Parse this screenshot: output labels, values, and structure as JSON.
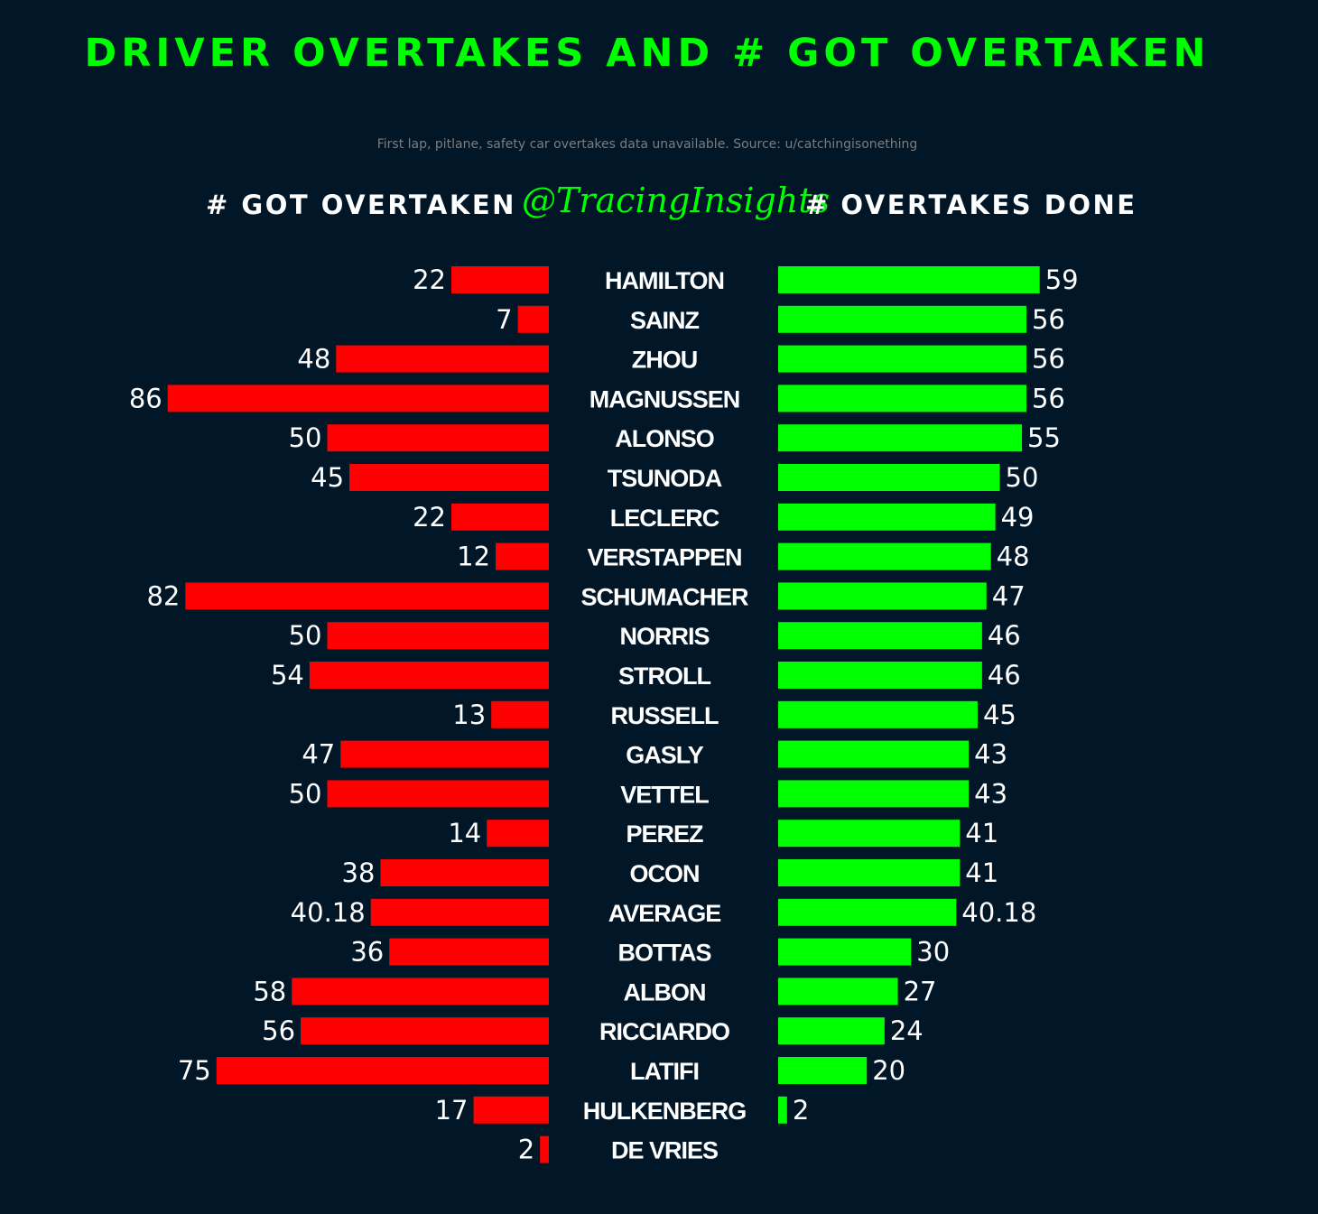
{
  "title": "DRIVER OVERTAKES AND # GOT OVERTAKEN",
  "subtitle": "First lap, pitlane, safety car overtakes data unavailable. Source: u/catchingisonething",
  "left_header": "# GOT OVERTAKEN",
  "right_header": "# OVERTAKES DONE",
  "watermark": "@TracingInsights",
  "colors": {
    "background": "#011627",
    "got_overtaken": "#ff0000",
    "overtakes_done": "#00ff00",
    "title": "#00ff00",
    "text": "#ffffff"
  },
  "chart_data": {
    "type": "bar",
    "orientation": "horizontal-diverging",
    "categories": [
      "HAMILTON",
      "SAINZ",
      "ZHOU",
      "MAGNUSSEN",
      "ALONSO",
      "TSUNODA",
      "LECLERC",
      "VERSTAPPEN",
      "SCHUMACHER",
      "NORRIS",
      "STROLL",
      "RUSSELL",
      "GASLY",
      "VETTEL",
      "PEREZ",
      "OCON",
      "AVERAGE",
      "BOTTAS",
      "ALBON",
      "RICCIARDO",
      "LATIFI",
      "HULKENBERG",
      "DE VRIES"
    ],
    "series": [
      {
        "name": "# GOT OVERTAKEN",
        "side": "left",
        "values": [
          22,
          7,
          48,
          86,
          50,
          45,
          22,
          12,
          82,
          50,
          54,
          13,
          47,
          50,
          14,
          38,
          40.18,
          36,
          58,
          56,
          75,
          17,
          2
        ]
      },
      {
        "name": "# OVERTAKES DONE",
        "side": "right",
        "values": [
          59,
          56,
          56,
          56,
          55,
          50,
          49,
          48,
          47,
          46,
          46,
          45,
          43,
          43,
          41,
          41,
          40.18,
          30,
          27,
          24,
          20,
          2,
          null
        ]
      }
    ],
    "grid": false,
    "axes_visible": false
  }
}
